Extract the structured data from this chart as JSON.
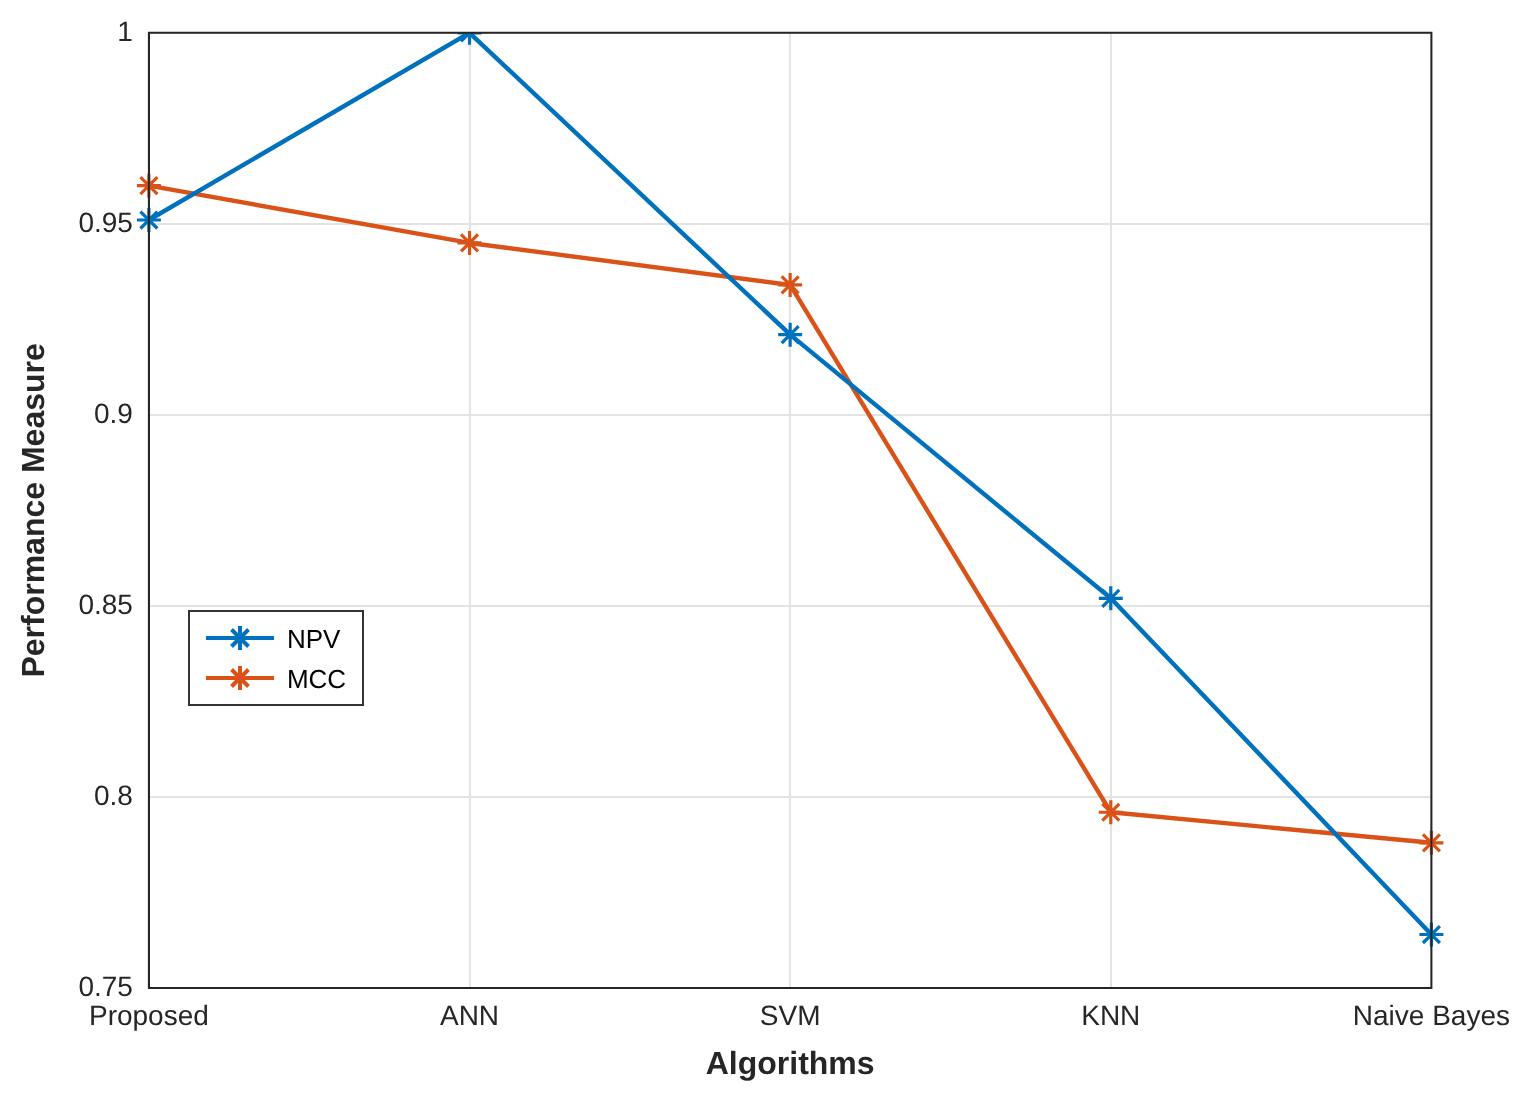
{
  "chart_data": {
    "type": "line",
    "xlabel": "Algorithms",
    "ylabel": "Performance Measure",
    "categories": [
      "Proposed",
      "ANN",
      "SVM",
      "KNN",
      "Naive Bayes"
    ],
    "series": [
      {
        "name": "NPV",
        "color": "#0072bd",
        "values": [
          0.951,
          1.0,
          0.921,
          0.852,
          0.764
        ]
      },
      {
        "name": "MCC",
        "color": "#d95319",
        "values": [
          0.96,
          0.945,
          0.934,
          0.796,
          0.788
        ]
      }
    ],
    "ylim": [
      0.75,
      1
    ],
    "yticks": [
      0.75,
      0.8,
      0.85,
      0.9,
      0.95,
      1
    ],
    "grid": true,
    "legend": "left",
    "marker": "cross",
    "line_style": "solid"
  }
}
